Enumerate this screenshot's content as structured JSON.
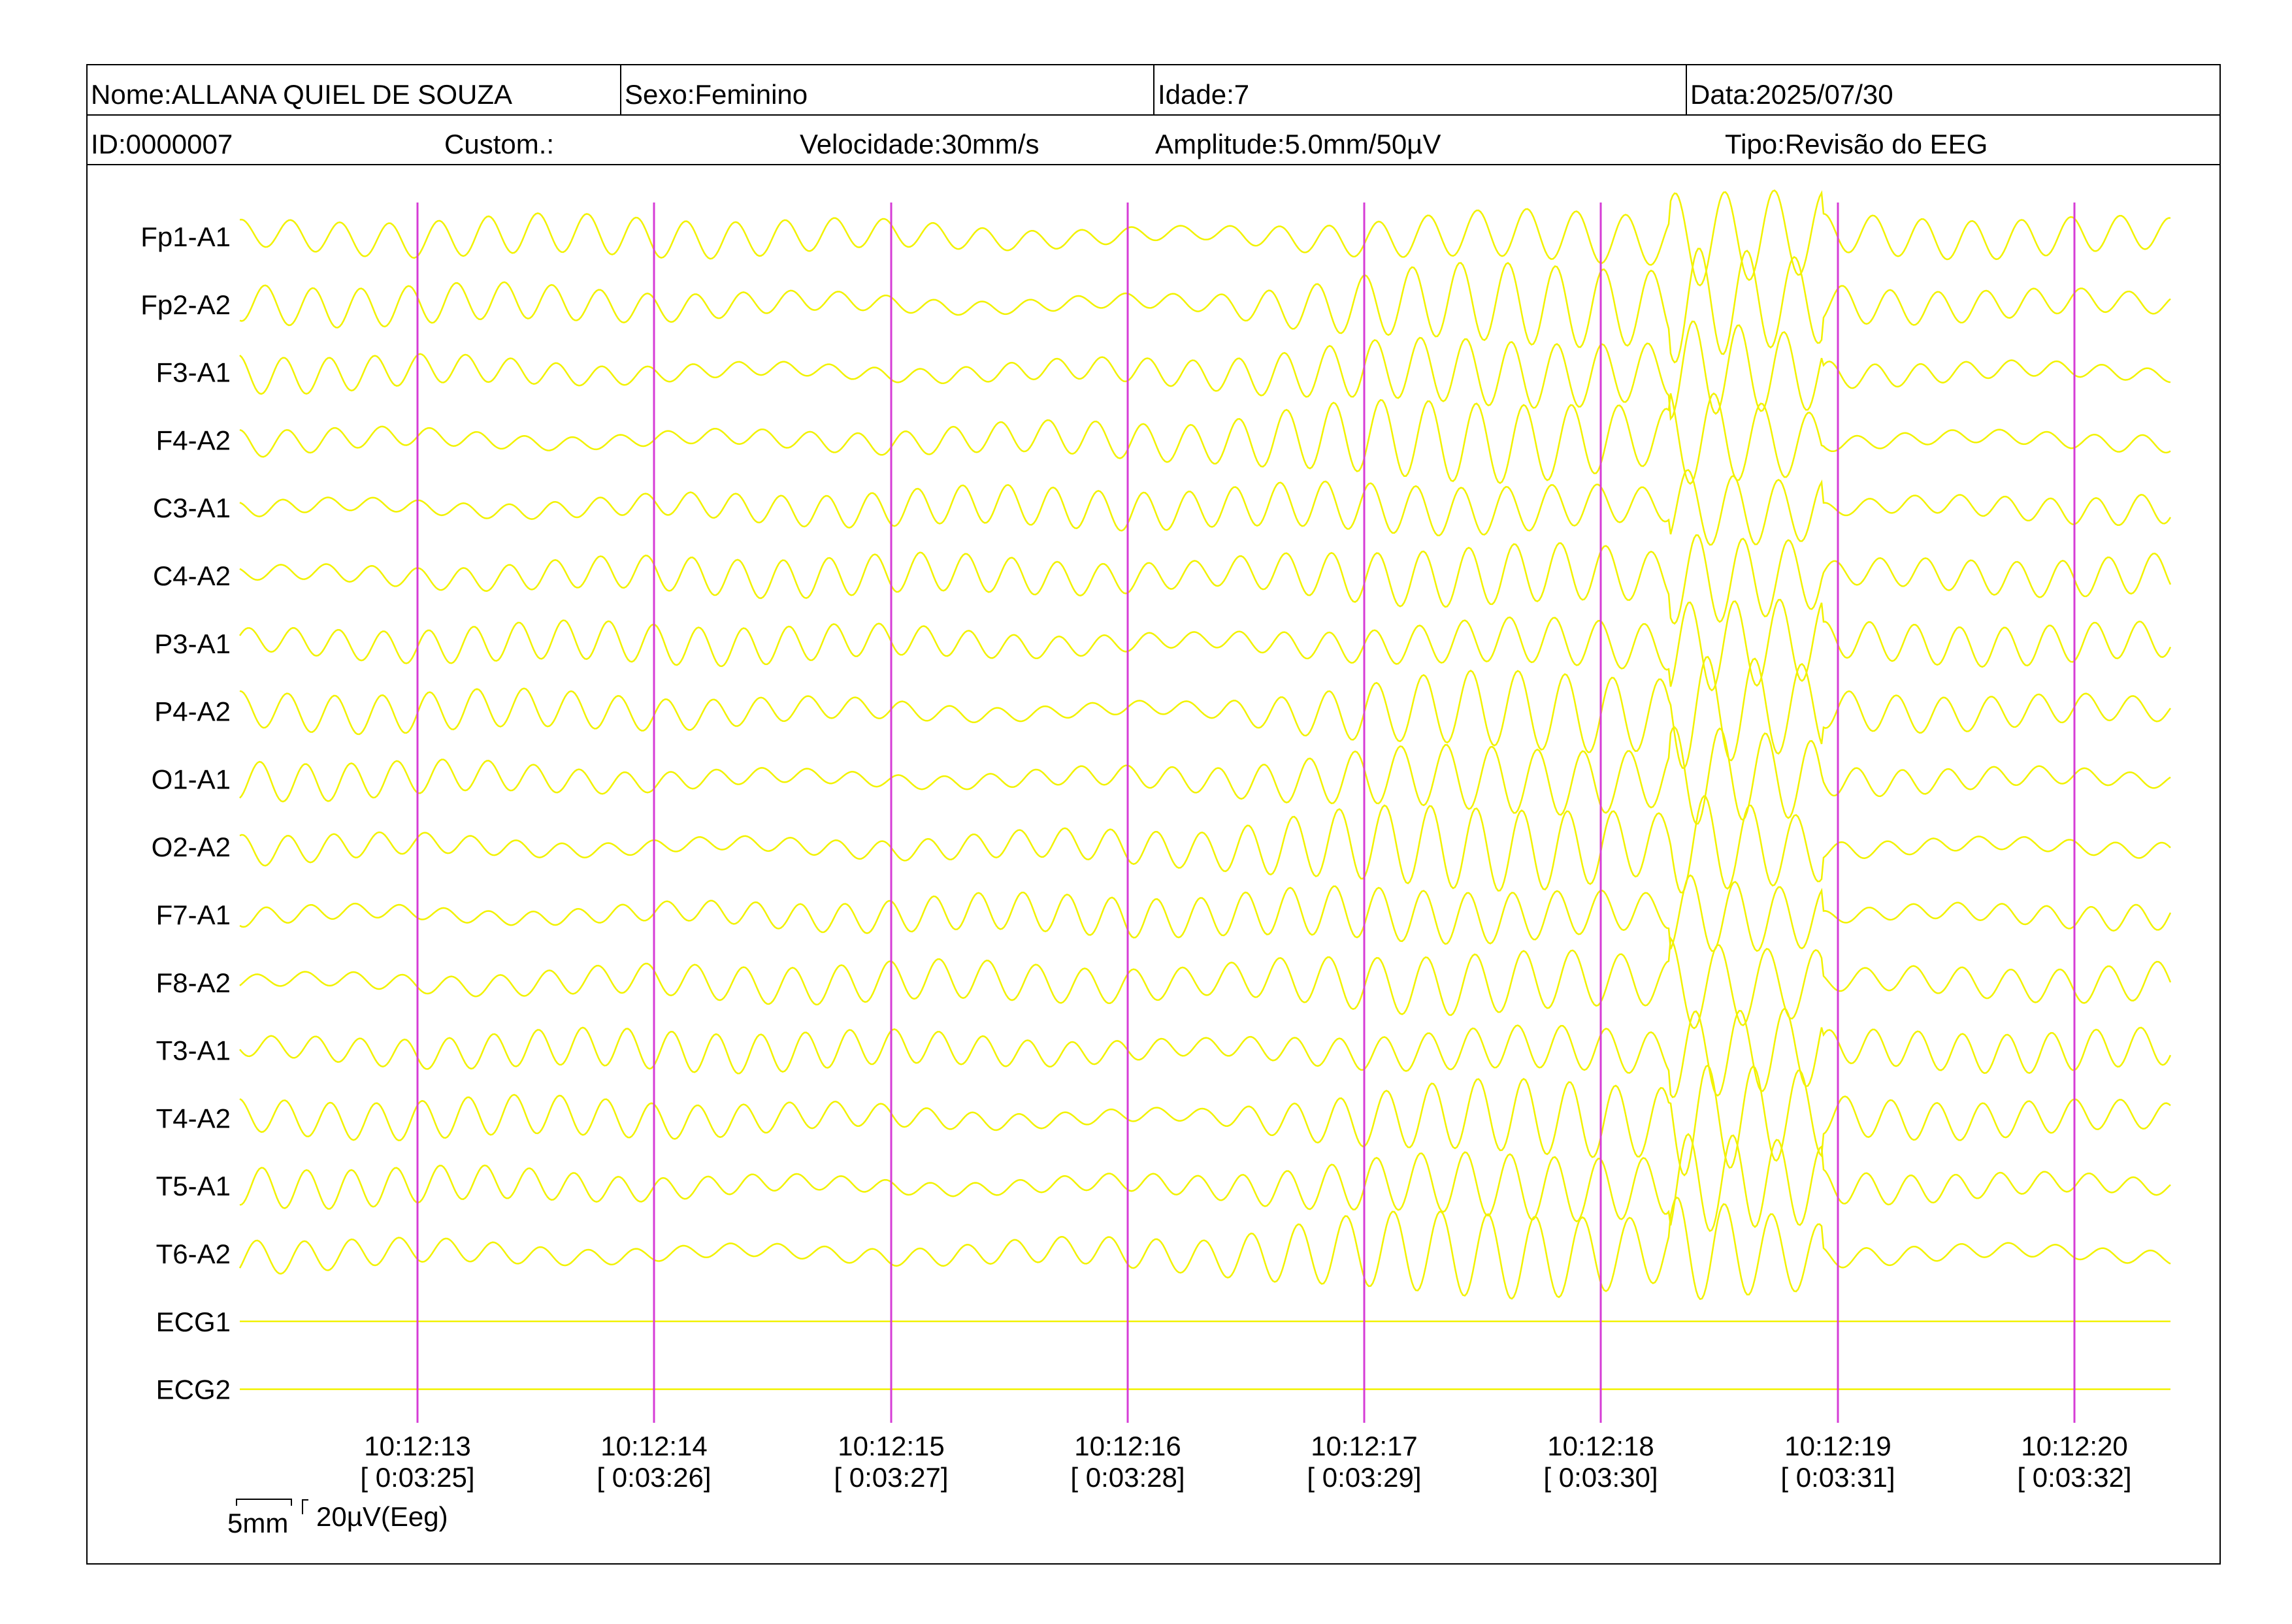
{
  "header": {
    "row1": [
      "Nome:ALLANA QUIEL DE SOUZA",
      "Sexo:Feminino",
      "Idade:7",
      "Data:2025/07/30"
    ],
    "row2": [
      "ID:0000007",
      "Custom.:",
      "Velocidade:30mm/s",
      "Amplitude:5.0mm/50µV",
      "Tipo:Revisão do EEG"
    ]
  },
  "channels": [
    "Fp1-A1",
    "Fp2-A2",
    "F3-A1",
    "F4-A2",
    "C3-A1",
    "C4-A2",
    "P3-A1",
    "P4-A2",
    "O1-A1",
    "O2-A2",
    "F7-A1",
    "F8-A2",
    "T3-A1",
    "T4-A2",
    "T5-A1",
    "T6-A2",
    "ECG1",
    "ECG2"
  ],
  "time_marks": [
    {
      "time": "10:12:13",
      "elapsed": "[ 0:03:25]"
    },
    {
      "time": "10:12:14",
      "elapsed": "[ 0:03:26]"
    },
    {
      "time": "10:12:15",
      "elapsed": "[ 0:03:27]"
    },
    {
      "time": "10:12:16",
      "elapsed": "[ 0:03:28]"
    },
    {
      "time": "10:12:17",
      "elapsed": "[ 0:03:29]"
    },
    {
      "time": "10:12:18",
      "elapsed": "[ 0:03:30]"
    },
    {
      "time": "10:12:19",
      "elapsed": "[ 0:03:31]"
    },
    {
      "time": "10:12:20",
      "elapsed": "[ 0:03:32]"
    }
  ],
  "scale": {
    "time": "5mm",
    "amplitude": "20µV(Eeg)"
  }
}
